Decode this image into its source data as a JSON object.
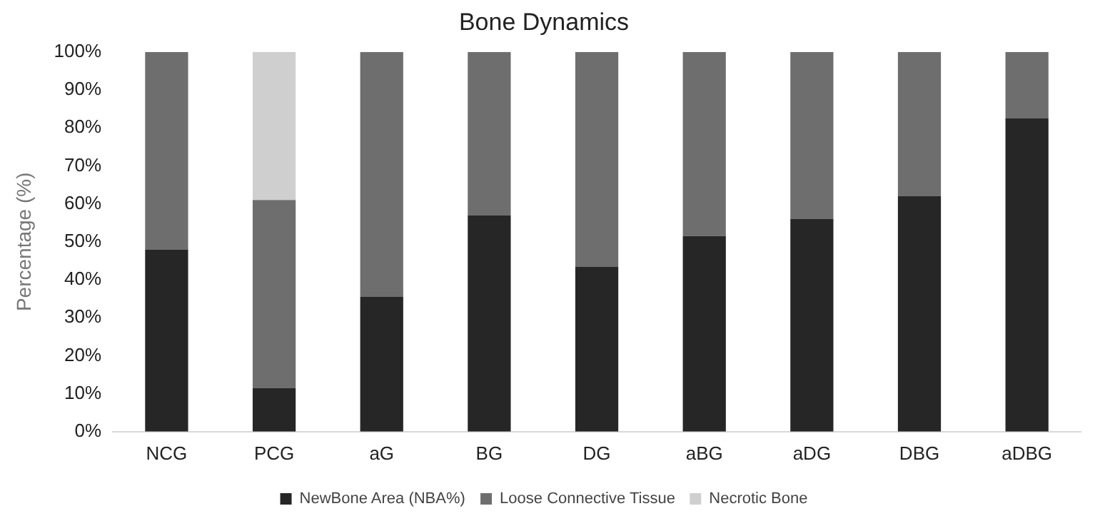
{
  "chart_data": {
    "type": "bar",
    "stacked": true,
    "title": "Bone Dynamics",
    "ylabel": "Percentage (%)",
    "categories": [
      "NCG",
      "PCG",
      "aG",
      "BG",
      "DG",
      "aBG",
      "aDG",
      "DBG",
      "aDBG"
    ],
    "series": [
      {
        "name": "NewBone Area (NBA%)",
        "color": "#262626",
        "values": [
          48,
          11.5,
          35.5,
          57,
          43.5,
          51.5,
          56,
          62,
          82.5
        ]
      },
      {
        "name": "Loose Connective Tissue",
        "color": "#6e6e6e",
        "values": [
          52,
          49.5,
          64.5,
          43,
          56.5,
          48.5,
          44,
          38,
          17.5
        ]
      },
      {
        "name": "Necrotic Bone",
        "color": "#cfcfcf",
        "values": [
          0,
          39,
          0,
          0,
          0,
          0,
          0,
          0,
          0
        ]
      }
    ],
    "ylim": [
      0,
      100
    ],
    "yticks": [
      {
        "value": 0,
        "label": "0%"
      },
      {
        "value": 10,
        "label": "10%"
      },
      {
        "value": 20,
        "label": "20%"
      },
      {
        "value": 30,
        "label": "30%"
      },
      {
        "value": 40,
        "label": "40%"
      },
      {
        "value": 50,
        "label": "50%"
      },
      {
        "value": 60,
        "label": "60%"
      },
      {
        "value": 70,
        "label": "70%"
      },
      {
        "value": 80,
        "label": "80%"
      },
      {
        "value": 90,
        "label": "90%"
      },
      {
        "value": 100,
        "label": "100%"
      }
    ],
    "grid": false,
    "legend": "bottom"
  }
}
